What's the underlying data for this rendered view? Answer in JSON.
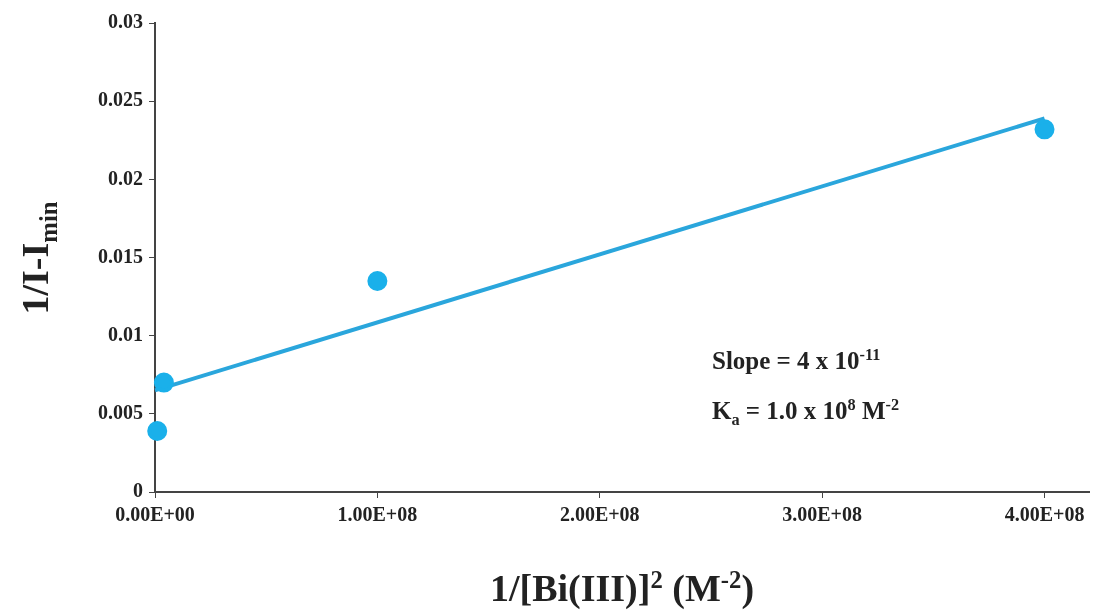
{
  "chart_data": {
    "type": "scatter",
    "xlabel": "1/[Bi(III)]$^{2}$ (M$^{-2}$)",
    "ylabel": "1/I-I$_{min}$",
    "x": [
      1000000,
      4000000,
      100000000,
      400000000
    ],
    "series": [
      {
        "color": "#1ab0ea",
        "values": [
          0.0039,
          0.007,
          0.0135,
          0.0232
        ]
      },
      {
        "type": "line",
        "color": "#2aa6dc",
        "x": [
          0,
          400000000
        ],
        "values": [
          0.0065,
          0.0239
        ],
        "marker": "none"
      }
    ],
    "marker": "circle",
    "xlim": [
      0,
      420000000
    ],
    "xticks": [
      {
        "value": 0,
        "label": "0.00E+00"
      },
      {
        "value": 100000000,
        "label": "1.00E+08"
      },
      {
        "value": 200000000,
        "label": "2.00E+08"
      },
      {
        "value": 300000000,
        "label": "3.00E+08"
      },
      {
        "value": 400000000,
        "label": "4.00E+08"
      }
    ],
    "ylim": [
      0,
      0.03
    ],
    "yticks": [
      0,
      0.005,
      0.01,
      0.015,
      0.02,
      0.025,
      0.03
    ],
    "annotations": [
      "Slope = 4 x 10$^{-11}$",
      "K$_{a}$ = 1.0 x 10$^{8}$ M$^{-2}$"
    ]
  }
}
